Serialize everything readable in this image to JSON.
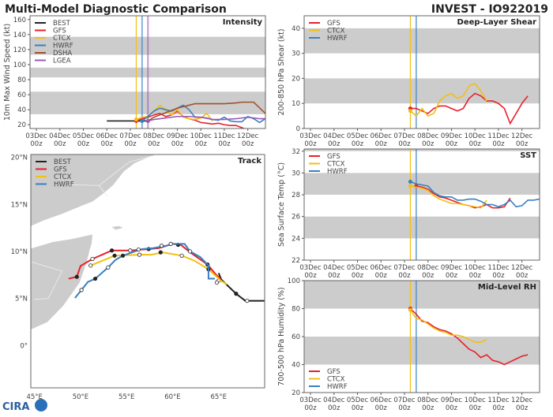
{
  "header": {
    "title_left": "Multi-Model Diagnostic Comparison",
    "title_right": "INVEST - IO922019"
  },
  "logo": {
    "text": "CIRA"
  },
  "colors": {
    "BEST": "#222222",
    "GFS": "#e8202a",
    "CTCX": "#f2bf14",
    "HWRF": "#3a7fc0",
    "DSHA": "#a0522d",
    "LGEA": "#9b59b6",
    "band": "#cccccc"
  },
  "time_axis": {
    "unit": "days since 03Dec 00z",
    "ticks": [
      0,
      1,
      2,
      3,
      4,
      5,
      6,
      7,
      8,
      9
    ],
    "labels": [
      "03Dec",
      "04Dec",
      "05Dec",
      "06Dec",
      "07Dec",
      "08Dec",
      "09Dec",
      "10Dec",
      "11Dec",
      "12Dec"
    ],
    "sublabel": "00z"
  },
  "chart_data": [
    {
      "id": "intensity",
      "type": "line",
      "title": "Intensity",
      "ylabel": "10m Max Wind Speed (kt)",
      "xlim": [
        -0.27,
        9.75
      ],
      "ylim": [
        15,
        165
      ],
      "yticks": [
        20,
        40,
        60,
        80,
        100,
        120,
        140,
        160
      ],
      "bands": [
        [
          34,
          64
        ],
        [
          83,
          96
        ],
        [
          113,
          137
        ]
      ],
      "init_lines": [
        {
          "model": "CTCX",
          "x": 4.25
        },
        {
          "model": "HWRF",
          "x": 4.5
        },
        {
          "model": "LGEA",
          "x": 4.75
        }
      ],
      "legend": {
        "entries": [
          "BEST",
          "GFS",
          "CTCX",
          "HWRF",
          "DSHA",
          "LGEA"
        ],
        "placement": "top-left"
      },
      "series": [
        {
          "name": "BEST",
          "x": [
            3,
            4.75
          ],
          "y": [
            25,
            25
          ]
        },
        {
          "name": "GFS",
          "x": [
            4.25,
            4.5,
            4.75,
            5,
            5.25,
            5.5,
            5.75,
            6,
            6.25,
            6.5,
            6.75,
            7,
            7.25,
            7.5,
            7.75,
            8,
            8.25,
            8.5,
            8.75,
            9
          ],
          "y": [
            25,
            28,
            30,
            33,
            35,
            31,
            33,
            38,
            31,
            28,
            26,
            23,
            22,
            21,
            22,
            20,
            19,
            19,
            16,
            13
          ]
        },
        {
          "name": "CTCX",
          "x": [
            4.25,
            4.5,
            4.75,
            5,
            5.25,
            5.5,
            5.75,
            6,
            6.25,
            6.5,
            6.75,
            7,
            7.25,
            7.5
          ],
          "y": [
            27,
            30,
            31,
            38,
            46,
            40,
            33,
            40,
            30,
            28,
            27,
            29,
            35,
            25
          ]
        },
        {
          "name": "HWRF",
          "x": [
            4.5,
            4.75,
            5,
            5.25,
            5.5,
            5.75,
            6,
            6.25,
            6.5,
            6.75,
            7,
            7.25,
            7.5,
            7.75,
            8,
            8.25,
            8.5,
            8.75,
            9,
            9.25,
            9.5,
            9.75
          ],
          "y": [
            25,
            31,
            38,
            42,
            40,
            38,
            42,
            46,
            40,
            30,
            30,
            29,
            27,
            26,
            30,
            25,
            24,
            24,
            31,
            28,
            23,
            28
          ]
        },
        {
          "name": "DSHA",
          "x": [
            4.75,
            5,
            5.5,
            6,
            6.5,
            6.75,
            7,
            8,
            8.5,
            8.75,
            9.25,
            9.75
          ],
          "y": [
            25,
            30,
            36,
            42,
            46,
            48,
            48,
            48,
            49,
            50,
            50,
            35
          ]
        },
        {
          "name": "LGEA",
          "x": [
            4.75,
            5,
            5.5,
            6,
            6.5,
            7,
            7.5,
            8,
            8.5,
            9,
            9.5,
            9.75
          ],
          "y": [
            25,
            27,
            29,
            31,
            31,
            30,
            27,
            27,
            28,
            30,
            28,
            28
          ]
        }
      ]
    },
    {
      "id": "shear",
      "type": "line",
      "title": "Deep-Layer Shear",
      "ylabel": "200-850 hPa Shear (kt)",
      "xlim": [
        -0.27,
        9.75
      ],
      "ylim": [
        0,
        45
      ],
      "yticks": [
        0,
        10,
        20,
        30,
        40
      ],
      "bands": [
        [
          10,
          20
        ],
        [
          30,
          40
        ]
      ],
      "init_lines": [
        {
          "model": "CTCX",
          "x": 4.25
        },
        {
          "model": "HWRF",
          "x": 4.5
        }
      ],
      "legend": {
        "entries": [
          "GFS",
          "CTCX",
          "HWRF"
        ],
        "placement": "top-left"
      },
      "series": [
        {
          "name": "GFS",
          "x": [
            4.25,
            4.5,
            4.75,
            5,
            5.25,
            5.5,
            5.75,
            6,
            6.25,
            6.5,
            6.75,
            7,
            7.25,
            7.5,
            7.75,
            8,
            8.25,
            8.5,
            8.75,
            9,
            9.25
          ],
          "y": [
            8,
            8,
            7,
            6,
            8,
            9,
            9,
            8,
            7,
            8,
            12,
            14,
            13,
            11,
            11,
            10,
            8,
            2,
            6,
            10,
            13
          ]
        },
        {
          "name": "CTCX",
          "x": [
            4.25,
            4.5,
            4.75,
            5,
            5.25,
            5.5,
            5.75,
            6,
            6.25,
            6.5,
            6.75,
            7,
            7.25,
            7.5
          ],
          "y": [
            7,
            5,
            8,
            5,
            6,
            11,
            13,
            14,
            12,
            13,
            17,
            18,
            15,
            11
          ]
        }
      ]
    },
    {
      "id": "sst",
      "type": "line",
      "title": "SST",
      "ylabel": "Sea Surface Temp (°C)",
      "xlim": [
        -0.27,
        9.75
      ],
      "ylim": [
        22,
        32.2
      ],
      "yticks": [
        22,
        24,
        26,
        28,
        30,
        32
      ],
      "bands": [
        [
          24,
          26
        ],
        [
          28,
          30
        ],
        [
          32,
          32.2
        ]
      ],
      "init_lines": [
        {
          "model": "CTCX",
          "x": 4.25
        },
        {
          "model": "HWRF",
          "x": 4.5
        }
      ],
      "legend": {
        "entries": [
          "GFS",
          "CTCX",
          "HWRF"
        ],
        "placement": "top-left"
      },
      "series": [
        {
          "name": "GFS",
          "x": [
            4.5,
            4.75,
            5,
            5.25,
            5.5,
            5.75,
            6,
            6.25,
            6.5,
            6.75,
            7,
            7.25,
            7.5,
            7.75,
            8,
            8.25,
            8.5
          ],
          "y": [
            28.8,
            28.7,
            28.5,
            28.1,
            27.8,
            27.7,
            27.5,
            27.3,
            27.1,
            27.0,
            26.8,
            26.9,
            27.1,
            26.8,
            26.8,
            26.9,
            27.7
          ]
        },
        {
          "name": "CTCX",
          "x": [
            4.25,
            4.5,
            4.75,
            5,
            5.25,
            5.5,
            5.75,
            6,
            6.25,
            6.5,
            6.75,
            7,
            7.25,
            7.5
          ],
          "y": [
            28.8,
            28.7,
            28.6,
            28.4,
            27.9,
            27.6,
            27.4,
            27.2,
            27.2,
            27.1,
            27.0,
            26.9,
            26.8,
            27.5
          ]
        },
        {
          "name": "HWRF",
          "x": [
            4.25,
            4.5,
            4.75,
            5,
            5.25,
            5.5,
            5.75,
            6,
            6.25,
            6.5,
            6.75,
            7,
            7.25,
            7.5,
            7.75,
            8,
            8.25,
            8.5,
            8.75,
            9,
            9.25,
            9.5,
            9.75
          ],
          "y": [
            29.2,
            29.0,
            28.9,
            28.8,
            28.2,
            27.9,
            27.8,
            27.8,
            27.5,
            27.5,
            27.6,
            27.6,
            27.4,
            27.1,
            27.1,
            26.9,
            27.1,
            27.5,
            26.9,
            27.0,
            27.5,
            27.5,
            27.6
          ]
        }
      ]
    },
    {
      "id": "rh",
      "type": "line",
      "title": "Mid-Level RH",
      "ylabel": "700-500 hPa Humidity (%)",
      "xlim": [
        -0.27,
        9.75
      ],
      "ylim": [
        20,
        100
      ],
      "yticks": [
        20,
        40,
        60,
        80,
        100
      ],
      "bands": [
        [
          40,
          60
        ],
        [
          80,
          100
        ]
      ],
      "init_lines": [
        {
          "model": "CTCX",
          "x": 4.25
        },
        {
          "model": "HWRF",
          "x": 4.5
        }
      ],
      "legend": {
        "entries": [
          "GFS",
          "CTCX",
          "HWRF"
        ],
        "placement": "bottom-left"
      },
      "series": [
        {
          "name": "GFS",
          "x": [
            4.25,
            4.5,
            4.75,
            5,
            5.25,
            5.5,
            5.75,
            6,
            6.25,
            6.5,
            6.75,
            7,
            7.25,
            7.5,
            7.75,
            8,
            8.25,
            8.5,
            8.75,
            9,
            9.25
          ],
          "y": [
            80,
            76,
            71,
            70,
            67,
            65,
            64,
            62,
            59,
            55,
            51,
            49,
            45,
            47,
            43,
            42,
            40,
            42,
            44,
            46,
            47
          ]
        },
        {
          "name": "CTCX",
          "x": [
            4.25,
            4.5,
            4.75,
            5,
            5.25,
            5.5,
            5.75,
            6,
            6.25,
            6.5,
            6.75,
            7,
            7.25,
            7.5
          ],
          "y": [
            79,
            73,
            72,
            69,
            66,
            64,
            63,
            61,
            61,
            60,
            58,
            56,
            56,
            58
          ]
        }
      ]
    },
    {
      "id": "track",
      "type": "scatter",
      "title": "Track",
      "xlim": [
        44.6,
        70
      ],
      "ylim": [
        -4.5,
        20.3
      ],
      "xticks": [
        45,
        50,
        55,
        60,
        65
      ],
      "xticklabels": [
        "45°E",
        "50°E",
        "55°E",
        "60°E",
        "65°E"
      ],
      "yticks": [
        0,
        5,
        10,
        15,
        20
      ],
      "yticklabels": [
        "0°",
        "5°N",
        "10°N",
        "15°N",
        "20°N"
      ],
      "legend": {
        "entries": [
          "BEST",
          "GFS",
          "CTCX",
          "HWRF"
        ],
        "placement": "top-left"
      },
      "series": [
        {
          "name": "BEST",
          "lon": [
            70,
            68.5,
            67.9,
            66.9,
            65.3,
            65.0
          ],
          "lat": [
            4.75,
            4.75,
            4.75,
            5.5,
            7.0,
            7.7
          ],
          "markers": [
            [
              68.1,
              4.75,
              0
            ],
            [
              66.9,
              5.5,
              1
            ],
            [
              65.0,
              6.9,
              0
            ]
          ]
        },
        {
          "name": "GFS",
          "lon": [
            48.7,
            49.6,
            50.0,
            51.3,
            53.4,
            55.4,
            57.4,
            58.5,
            60.0,
            60.9,
            61.9,
            63.8,
            64.7,
            65.2
          ],
          "lat": [
            7.1,
            7.3,
            8.45,
            9.2,
            10.1,
            10.1,
            10.25,
            10.35,
            10.8,
            10.7,
            9.9,
            8.6,
            7.55,
            7.1
          ],
          "markers": [
            [
              49.6,
              7.3,
              1
            ],
            [
              51.3,
              9.2,
              0
            ],
            [
              53.4,
              10.1,
              1
            ],
            [
              55.4,
              10.1,
              0
            ],
            [
              57.4,
              10.25,
              1
            ],
            [
              60.6,
              10.7,
              1
            ],
            [
              63.8,
              8.6,
              1
            ]
          ]
        },
        {
          "name": "CTCX",
          "lon": [
            51.1,
            53.7,
            56.4,
            57.7,
            58.9,
            61.0,
            62.4,
            63.9,
            65.3,
            65.9
          ],
          "lat": [
            8.5,
            9.55,
            9.65,
            9.65,
            9.9,
            9.55,
            9.0,
            8.1,
            6.85,
            6.5
          ],
          "markers": [
            [
              51.1,
              8.5,
              0
            ],
            [
              53.7,
              9.55,
              1
            ],
            [
              56.4,
              9.65,
              0
            ],
            [
              58.7,
              9.9,
              1
            ],
            [
              61.0,
              9.55,
              0
            ],
            [
              63.9,
              8.1,
              1
            ],
            [
              64.8,
              6.7,
              0
            ]
          ]
        },
        {
          "name": "HWRF",
          "lon": [
            49.4,
            50.1,
            50.8,
            51.6,
            52.3,
            53.0,
            53.8,
            54.6,
            55.9,
            56.7,
            57.9,
            59.3,
            60.0,
            61.3,
            61.9,
            63.0,
            63.9,
            63.9,
            64.6
          ],
          "lat": [
            5.05,
            5.9,
            6.75,
            7.1,
            7.7,
            8.3,
            9.1,
            9.55,
            10.0,
            10.25,
            10.35,
            10.6,
            10.8,
            10.8,
            10.0,
            9.4,
            8.5,
            7.1,
            7.1
          ],
          "markers": [
            [
              50.1,
              5.9,
              0
            ],
            [
              51.6,
              7.1,
              1
            ],
            [
              53.0,
              8.3,
              0
            ],
            [
              54.6,
              9.55,
              1
            ],
            [
              56.3,
              10.2,
              0
            ],
            [
              58.8,
              10.6,
              0
            ],
            [
              59.8,
              10.8,
              0
            ],
            [
              61.9,
              10.0,
              0
            ]
          ]
        }
      ],
      "land": [
        [
          [
            44.6,
            12.7
          ],
          [
            46,
            13.3
          ],
          [
            48,
            14
          ],
          [
            50,
            14.8
          ],
          [
            51.3,
            15.3
          ],
          [
            52.4,
            16.1
          ],
          [
            53.5,
            17
          ],
          [
            54.7,
            18.5
          ],
          [
            55.9,
            19.4
          ],
          [
            58.1,
            20.3
          ],
          [
            44.6,
            20.3
          ]
        ],
        [
          [
            44.6,
            10.3
          ],
          [
            47,
            11
          ],
          [
            49,
            11.3
          ],
          [
            51.3,
            11.8
          ],
          [
            51.2,
            10.8
          ],
          [
            51.0,
            10.2
          ],
          [
            50.7,
            9
          ],
          [
            49.9,
            6.7
          ],
          [
            48.1,
            4.2
          ],
          [
            46.4,
            2.5
          ],
          [
            44.6,
            1.7
          ]
        ],
        [
          [
            53.4,
            12.6
          ],
          [
            54.2,
            12.7
          ],
          [
            54.6,
            12.5
          ],
          [
            53.8,
            12.3
          ]
        ]
      ],
      "borders": [
        [
          [
            48.5,
            17.1
          ],
          [
            52.0,
            17.0
          ],
          [
            53.0,
            15.8
          ]
        ],
        [
          [
            52.0,
            17.0
          ],
          [
            55.3,
            19.5
          ],
          [
            58.0,
            20.2
          ]
        ],
        [
          [
            44.6,
            8.9
          ],
          [
            48,
            7.9
          ],
          [
            46.5,
            5.0
          ],
          [
            45.0,
            4.9
          ]
        ]
      ]
    }
  ]
}
